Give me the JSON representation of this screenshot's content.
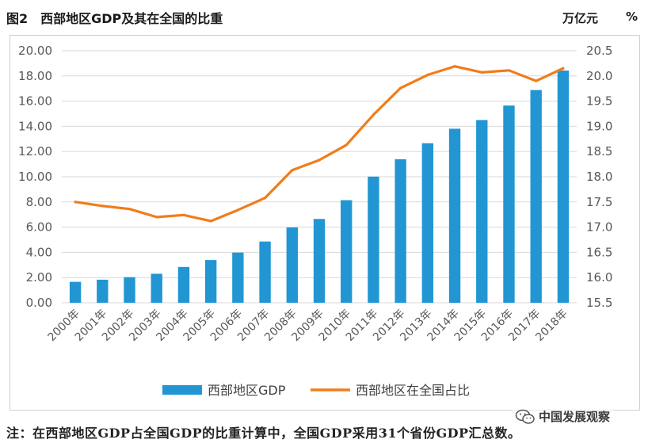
{
  "header": {
    "figure_no": "图2",
    "title": "西部地区GDP及其在全国的比重",
    "left_unit": "万亿元",
    "right_unit": "%"
  },
  "note": "注：在西部地区GDP占全国GDP的比重计算中，全国GDP采用31个省份GDP汇总数。",
  "watermark": {
    "text": "中国发展观察",
    "icon": "wechat-icon"
  },
  "colors": {
    "bar": "#2196d3",
    "line": "#f07d1a",
    "grid": "#d9d9d9",
    "axis_text": "#595959"
  },
  "chart_data": {
    "type": "bar",
    "categories": [
      "2000年",
      "2001年",
      "2002年",
      "2003年",
      "2004年",
      "2005年",
      "2006年",
      "2007年",
      "2008年",
      "2009年",
      "2010年",
      "2011年",
      "2012年",
      "2013年",
      "2014年",
      "2015年",
      "2016年",
      "2017年",
      "2018年"
    ],
    "series": [
      {
        "name": "西部地区GDP",
        "type": "bar",
        "axis": "left",
        "values": [
          1.66,
          1.83,
          2.03,
          2.3,
          2.84,
          3.39,
          3.98,
          4.86,
          5.98,
          6.65,
          8.14,
          10.01,
          11.39,
          12.66,
          13.81,
          14.5,
          15.65,
          16.88,
          18.43
        ]
      },
      {
        "name": "西部地区在全国占比",
        "type": "line",
        "axis": "right",
        "values": [
          17.5,
          17.42,
          17.36,
          17.2,
          17.24,
          17.12,
          17.34,
          17.58,
          18.13,
          18.33,
          18.63,
          19.23,
          19.76,
          20.02,
          20.19,
          20.07,
          20.11,
          19.9,
          20.15
        ]
      }
    ],
    "left_axis": {
      "ylim": [
        0,
        20
      ],
      "ticks": [
        "0.00",
        "2.00",
        "4.00",
        "6.00",
        "8.00",
        "10.00",
        "12.00",
        "14.00",
        "16.00",
        "18.00",
        "20.00"
      ]
    },
    "right_axis": {
      "ylim": [
        15.5,
        20.5
      ],
      "ticks": [
        "15.5",
        "16.0",
        "16.5",
        "17.0",
        "17.5",
        "18.0",
        "18.5",
        "19.0",
        "19.5",
        "20.0",
        "20.5"
      ]
    },
    "grid": true,
    "legend_position": "bottom"
  }
}
